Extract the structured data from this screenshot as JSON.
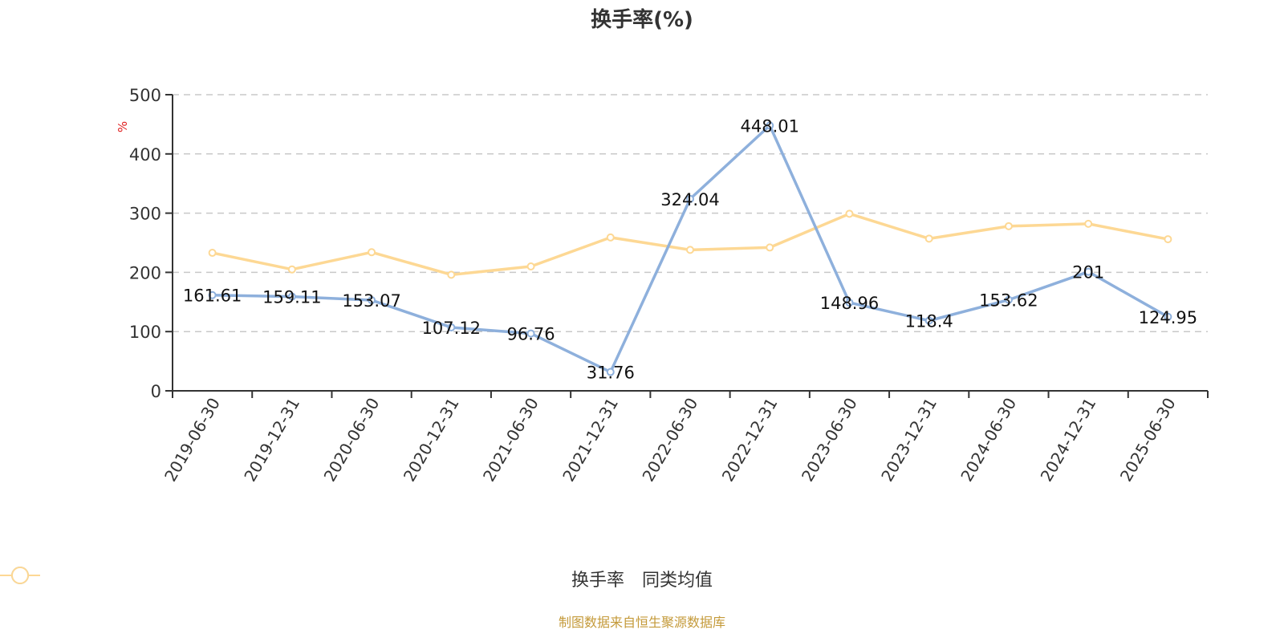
{
  "title": "换手率(%)",
  "footer": "制图数据来自恒生聚源数据库",
  "legend": [
    {
      "label": "换手率",
      "color": "#8eb0dc"
    },
    {
      "label": "同类均值",
      "color": "#fdd894"
    }
  ],
  "y_unit": "%",
  "chart_data": {
    "type": "line",
    "title": "换手率(%)",
    "xlabel": "",
    "ylabel": "%",
    "ylim": [
      0,
      500
    ],
    "yticks": [
      0,
      100,
      200,
      300,
      400,
      500
    ],
    "grid": true,
    "legend_position": "bottom",
    "categories": [
      "2019-06-30",
      "2019-12-31",
      "2020-06-30",
      "2020-12-31",
      "2021-06-30",
      "2021-12-31",
      "2022-06-30",
      "2022-12-31",
      "2023-06-30",
      "2023-12-31",
      "2024-06-30",
      "2024-12-31",
      "2025-06-30"
    ],
    "series": [
      {
        "name": "换手率",
        "color": "#8eb0dc",
        "labels": true,
        "values": [
          161.61,
          159.11,
          153.07,
          107.12,
          96.76,
          31.76,
          324.04,
          448.01,
          148.96,
          118.4,
          153.62,
          201,
          124.95
        ]
      },
      {
        "name": "同类均值",
        "color": "#fdd894",
        "labels": false,
        "values": [
          233,
          205,
          234,
          196,
          210,
          259,
          238,
          242,
          299,
          257,
          278,
          282,
          256
        ]
      }
    ]
  }
}
